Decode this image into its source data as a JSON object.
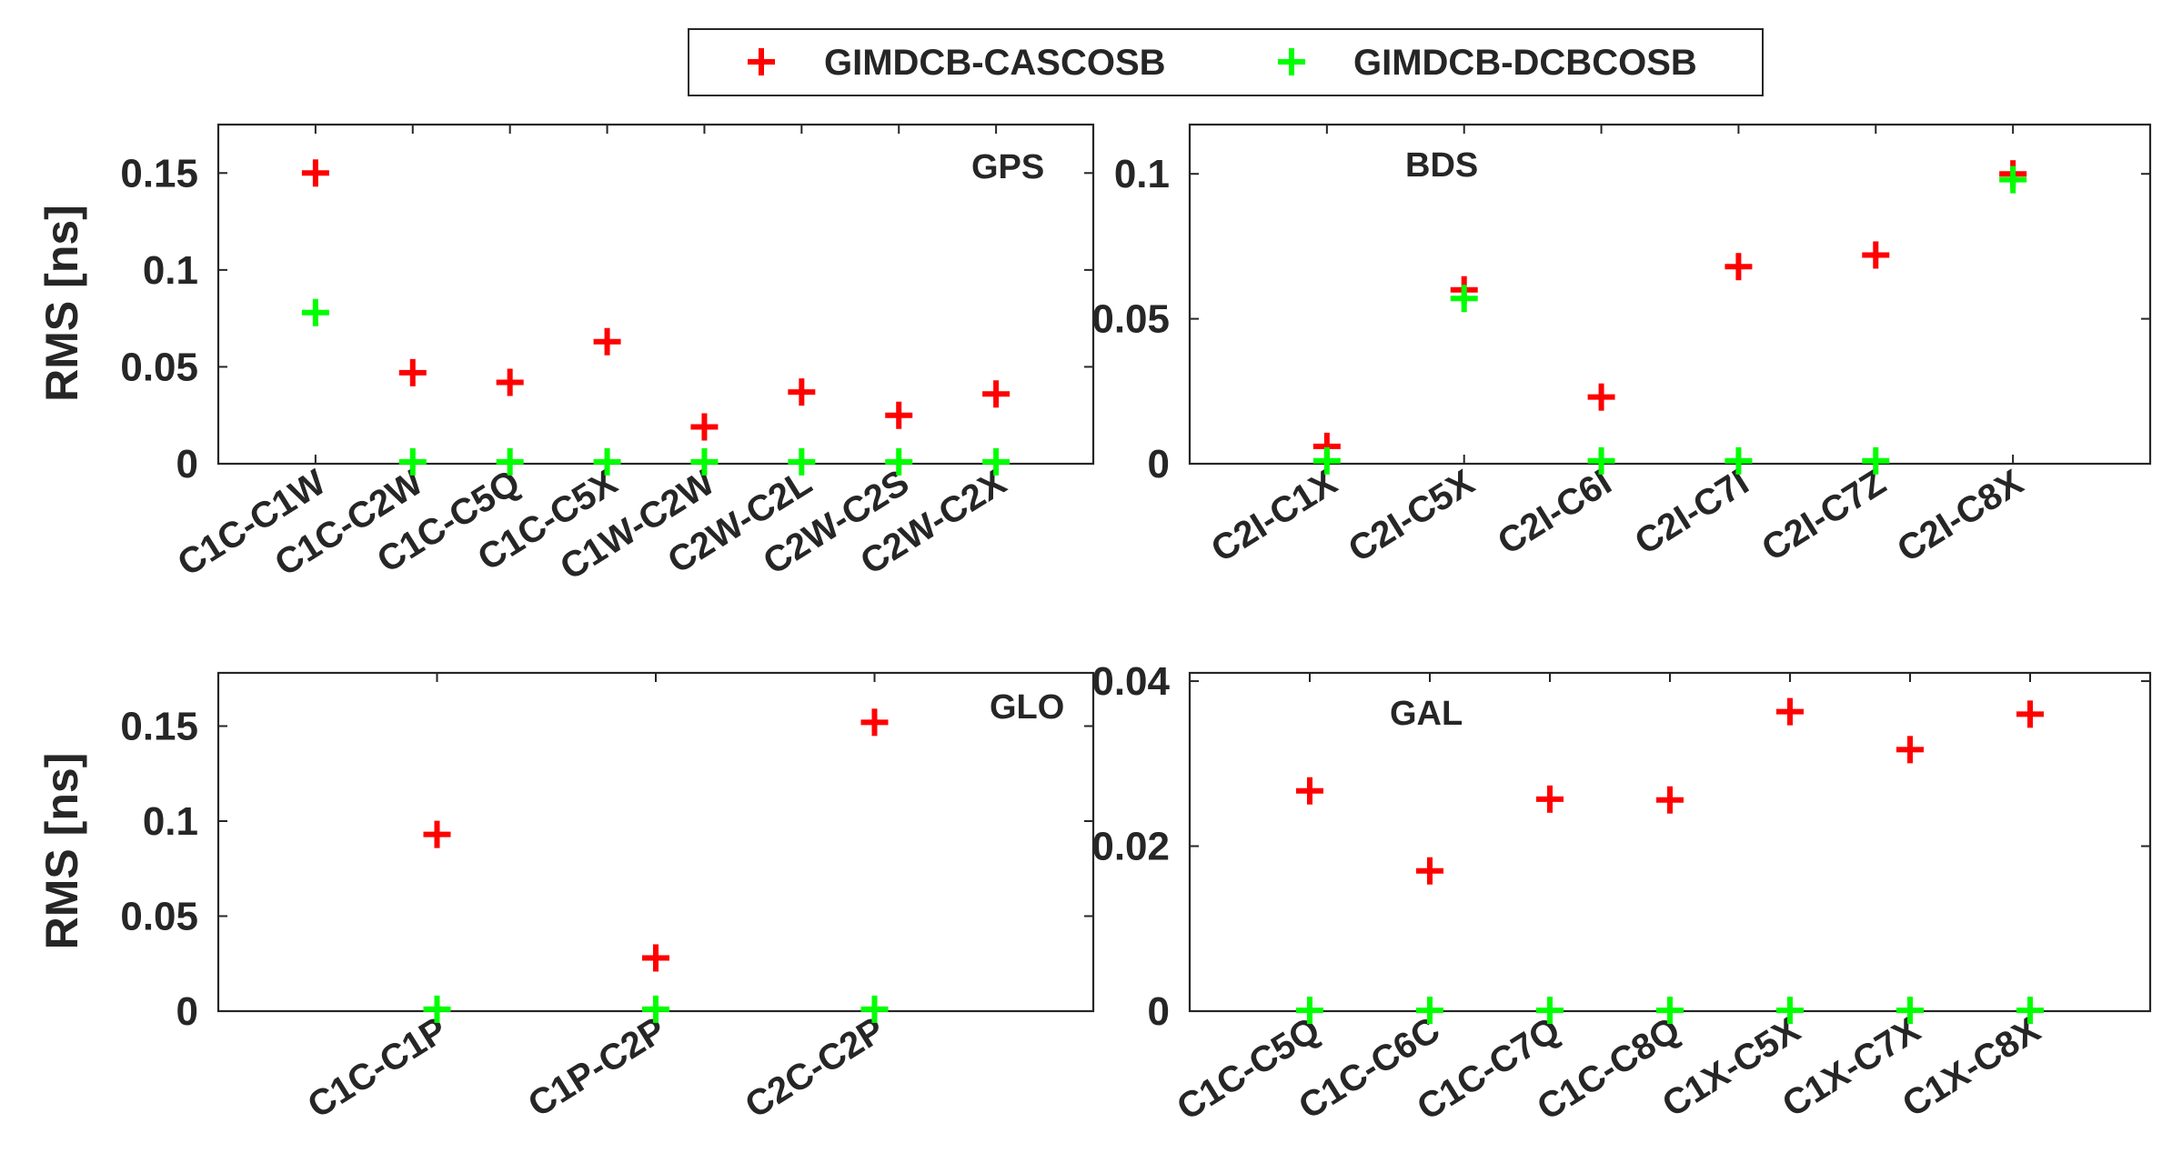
{
  "chart_data": {
    "type": "scatter",
    "legend": {
      "placement": "top-center",
      "entries": [
        {
          "name": "GIMDCB-CASCOSB",
          "color": "#ff0000",
          "marker": "plus"
        },
        {
          "name": "GIMDCB-DCBCOSB",
          "color": "#00ff00",
          "marker": "plus"
        }
      ]
    },
    "panels": [
      {
        "title": "GPS",
        "ylabel": "RMS [ns]",
        "ylim": [
          0,
          0.175
        ],
        "yticks": [
          0,
          0.05,
          0.1,
          0.15
        ],
        "ytick_labels": [
          "0",
          "0.05",
          "0.1",
          "0.15"
        ],
        "categories": [
          "C1C-C1W",
          "C1C-C2W",
          "C1C-C5Q",
          "C1C-C5X",
          "C1W-C2W",
          "C2W-C2L",
          "C2W-C2S",
          "C2W-C2X"
        ],
        "xlim": [
          0,
          9
        ],
        "series": [
          {
            "name": "GIMDCB-CASCOSB",
            "values": [
              0.15,
              0.047,
              0.042,
              0.063,
              0.019,
              0.037,
              0.025,
              0.036
            ]
          },
          {
            "name": "GIMDCB-DCBCOSB",
            "values": [
              0.078,
              0.001,
              0.001,
              0.001,
              0.001,
              0.001,
              0.001,
              0.001
            ]
          }
        ]
      },
      {
        "title": "BDS",
        "ylabel": "",
        "ylim": [
          0,
          0.117
        ],
        "yticks": [
          0,
          0.05,
          0.1
        ],
        "ytick_labels": [
          "0",
          "0.05",
          "0.1"
        ],
        "categories": [
          "C2I-C1X",
          "C2I-C5X",
          "C2I-C6I",
          "C2I-C7I",
          "C2I-C7Z",
          "C2I-C8X"
        ],
        "xlim": [
          0,
          7
        ],
        "series": [
          {
            "name": "GIMDCB-CASCOSB",
            "values": [
              0.006,
              0.06,
              0.023,
              0.068,
              0.072,
              0.1
            ]
          },
          {
            "name": "GIMDCB-DCBCOSB",
            "values": [
              0.001,
              0.057,
              0.001,
              0.001,
              0.001,
              0.098
            ]
          }
        ]
      },
      {
        "title": "GLO",
        "ylabel": "RMS [ns]",
        "ylim": [
          0,
          0.178
        ],
        "yticks": [
          0,
          0.05,
          0.1,
          0.15
        ],
        "ytick_labels": [
          "0",
          "0.05",
          "0.1",
          "0.15"
        ],
        "categories": [
          "C1C-C1P",
          "C1P-C2P",
          "C2C-C2P"
        ],
        "xlim": [
          0,
          4
        ],
        "series": [
          {
            "name": "GIMDCB-CASCOSB",
            "values": [
              0.093,
              0.028,
              0.152
            ]
          },
          {
            "name": "GIMDCB-DCBCOSB",
            "values": [
              0.001,
              0.001,
              0.001
            ]
          }
        ]
      },
      {
        "title": "GAL",
        "ylabel": "",
        "ylim": [
          0,
          0.041
        ],
        "yticks": [
          0,
          0.02,
          0.04
        ],
        "ytick_labels": [
          "0",
          "0.02",
          "0.04"
        ],
        "categories": [
          "C1C-C5Q",
          "C1C-C6C",
          "C1C-C7Q",
          "C1C-C8Q",
          "C1X-C5X",
          "C1X-C7X",
          "C1X-C8X"
        ],
        "xlim": [
          0,
          8
        ],
        "series": [
          {
            "name": "GIMDCB-CASCOSB",
            "values": [
              0.0267,
              0.017,
              0.0257,
              0.0256,
              0.0363,
              0.0317,
              0.036
            ]
          },
          {
            "name": "GIMDCB-DCBCOSB",
            "values": [
              0.0001,
              0.0001,
              0.0001,
              0.0001,
              0.0001,
              0.0001,
              0.0001
            ]
          }
        ]
      }
    ]
  }
}
